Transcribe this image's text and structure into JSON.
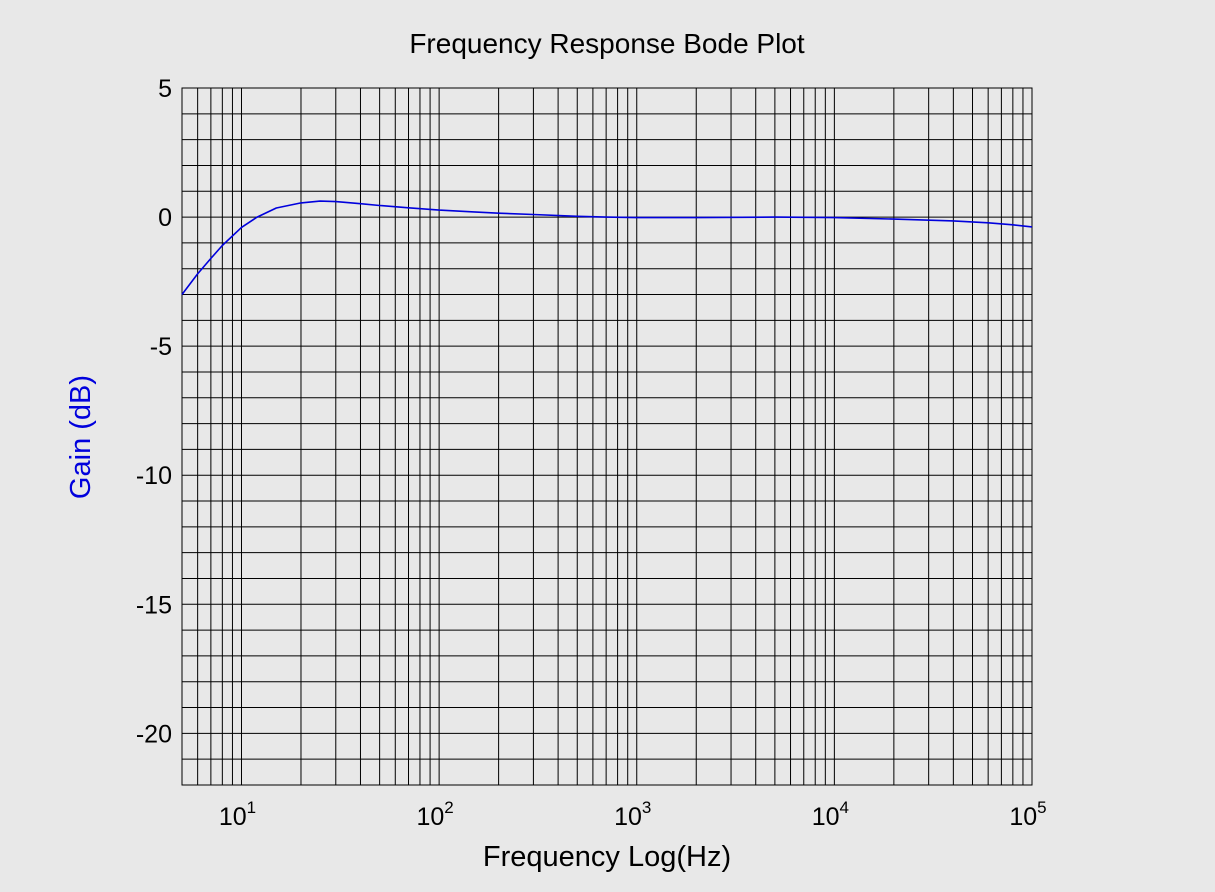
{
  "chart_data": {
    "type": "line",
    "title": "Frequency Response Bode Plot",
    "xlabel": "Frequency Log(Hz)",
    "ylabel": "Gain (dB)",
    "x_scale": "log",
    "xlim": [
      5,
      100000
    ],
    "ylim": [
      -22,
      5
    ],
    "grid": true,
    "x_ticks": [
      {
        "value": 10,
        "base": "10",
        "exp": "1"
      },
      {
        "value": 100,
        "base": "10",
        "exp": "2"
      },
      {
        "value": 1000,
        "base": "10",
        "exp": "3"
      },
      {
        "value": 10000,
        "base": "10",
        "exp": "4"
      },
      {
        "value": 100000,
        "base": "10",
        "exp": "5"
      }
    ],
    "y_ticks": [
      {
        "value": 5,
        "label": "5"
      },
      {
        "value": 0,
        "label": "0"
      },
      {
        "value": -5,
        "label": "-5"
      },
      {
        "value": -10,
        "label": "-10"
      },
      {
        "value": -15,
        "label": "-15"
      },
      {
        "value": -20,
        "label": "-20"
      }
    ],
    "series": [
      {
        "color": "#0000dd",
        "points": [
          [
            5,
            -3.0
          ],
          [
            6,
            -2.2
          ],
          [
            7,
            -1.6
          ],
          [
            8,
            -1.1
          ],
          [
            10,
            -0.4
          ],
          [
            12,
            0.0
          ],
          [
            15,
            0.35
          ],
          [
            20,
            0.55
          ],
          [
            25,
            0.62
          ],
          [
            30,
            0.6
          ],
          [
            40,
            0.52
          ],
          [
            50,
            0.45
          ],
          [
            70,
            0.36
          ],
          [
            100,
            0.27
          ],
          [
            150,
            0.2
          ],
          [
            200,
            0.15
          ],
          [
            300,
            0.1
          ],
          [
            500,
            0.03
          ],
          [
            700,
            0.0
          ],
          [
            1000,
            -0.02
          ],
          [
            2000,
            -0.02
          ],
          [
            5000,
            0.0
          ],
          [
            10000,
            -0.02
          ],
          [
            20000,
            -0.08
          ],
          [
            40000,
            -0.15
          ],
          [
            60000,
            -0.22
          ],
          [
            80000,
            -0.3
          ],
          [
            100000,
            -0.38
          ]
        ]
      }
    ],
    "colors": {
      "background": "#e8e8e8",
      "grid": "#000000",
      "ylabel": "#0000dd"
    }
  }
}
